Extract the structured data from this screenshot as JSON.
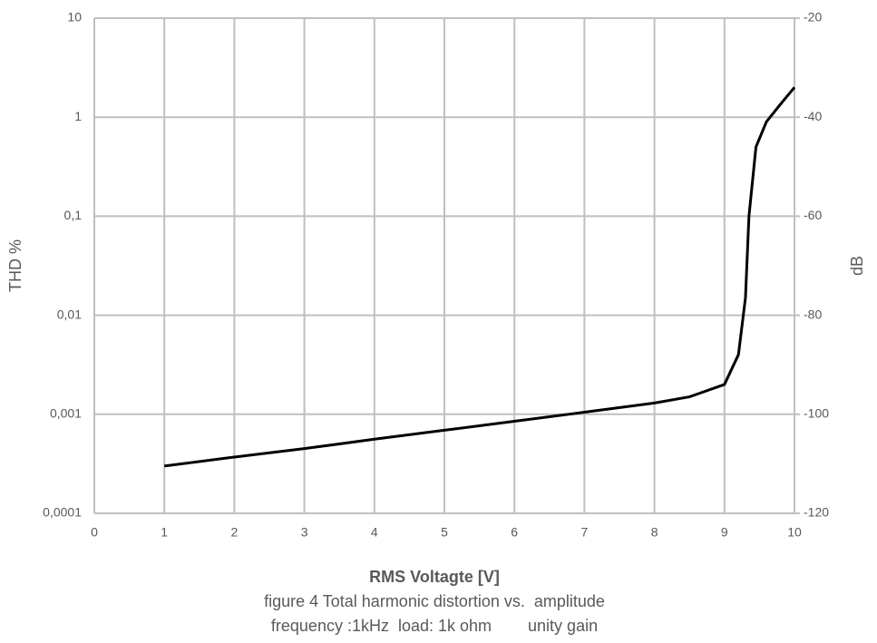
{
  "chart_data": {
    "type": "line",
    "xlabel": "RMS Voltagte [V]",
    "captions": [
      "figure 4 Total harmonic distortion vs.  amplitude",
      "frequency :1kHz  load: 1k ohm        unity gain"
    ],
    "ylabel": "THD %",
    "y2label": "dB",
    "x": [
      1,
      2,
      3,
      4,
      5,
      6,
      7,
      8,
      8.5,
      9,
      9.2,
      9.3,
      9.35,
      9.45,
      9.6,
      9.8,
      10
    ],
    "series": [
      {
        "color": "#000000",
        "values": [
          0.0003,
          0.00037,
          0.00045,
          0.00056,
          0.00069,
          0.00085,
          0.00105,
          0.0013,
          0.0015,
          0.002,
          0.004,
          0.015,
          0.1,
          0.5,
          0.9,
          1.35,
          2
        ]
      }
    ],
    "xlim": [
      0,
      10
    ],
    "xticks": [
      0,
      1,
      2,
      3,
      4,
      5,
      6,
      7,
      8,
      9,
      10
    ],
    "ylim": [
      0.0001,
      10
    ],
    "ylog": true,
    "yticks": [
      {
        "value": 0.0001,
        "label": "0,0001"
      },
      {
        "value": 0.001,
        "label": "0,001"
      },
      {
        "value": 0.01,
        "label": "0,01"
      },
      {
        "value": 0.1,
        "label": "0,1"
      },
      1,
      10
    ],
    "y2lim": [
      -120,
      -20
    ],
    "y2ticks": [
      -120,
      -100,
      -80,
      -60,
      -40,
      -20
    ],
    "grid": true
  }
}
